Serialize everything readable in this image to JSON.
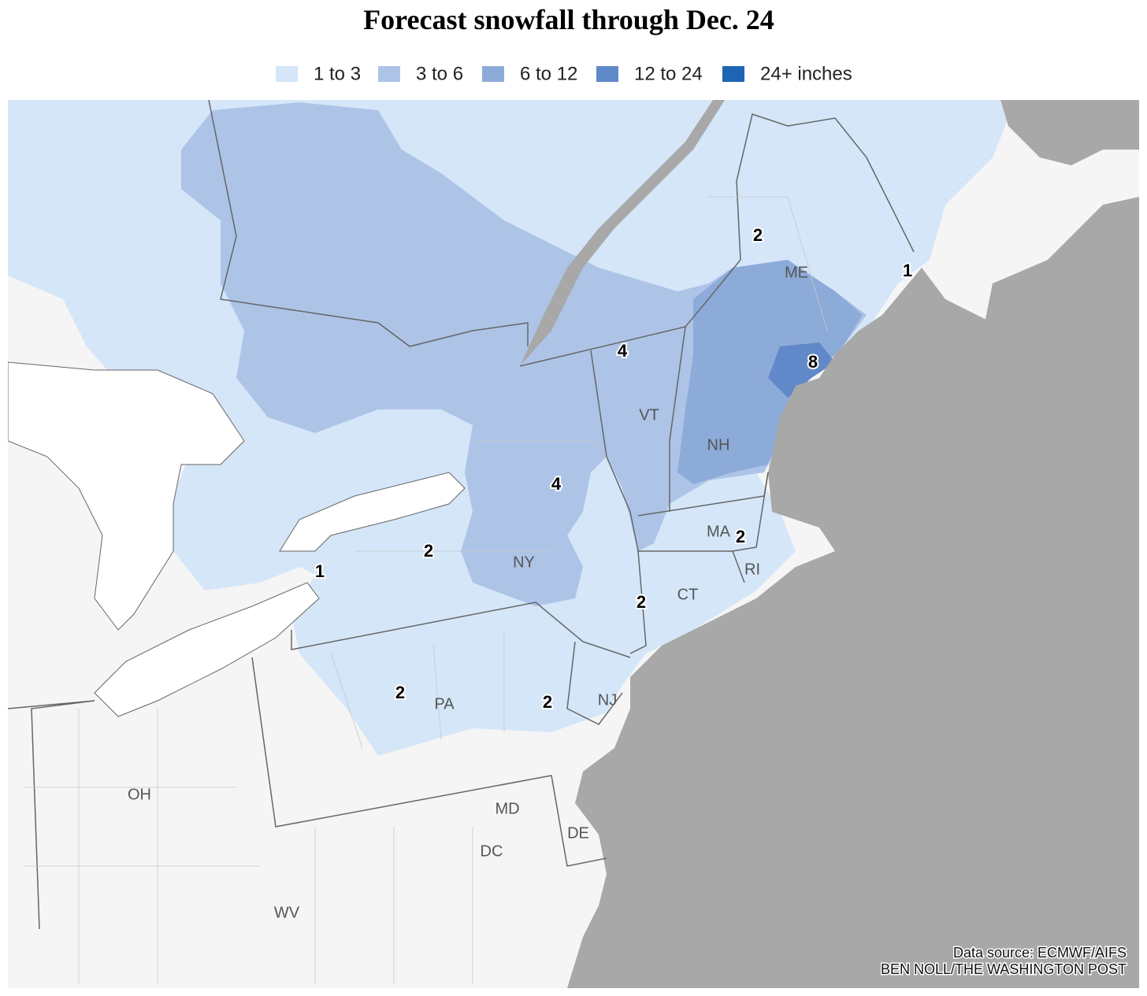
{
  "title": "Forecast snowfall through Dec. 24",
  "legend": [
    {
      "label": "1 to 3",
      "color": "#d4e6f8"
    },
    {
      "label": "3 to 6",
      "color": "#adc4e7"
    },
    {
      "label": "6 to 12",
      "color": "#8dabd9"
    },
    {
      "label": "12 to 24",
      "color": "#5f89c9"
    },
    {
      "label": "24+ inches",
      "color": "#1d64b4"
    }
  ],
  "state_labels": [
    "ME",
    "VT",
    "NH",
    "MA",
    "NY",
    "CT",
    "RI",
    "PA",
    "NJ",
    "OH",
    "MD",
    "DE",
    "DC",
    "WV"
  ],
  "snowfall_labels": [
    2,
    1,
    4,
    8,
    4,
    2,
    1,
    2,
    2,
    2,
    2
  ],
  "source": "Data source: ECMWF/AIFS",
  "credit": "BEN NOLL/THE WASHINGTON POST"
}
